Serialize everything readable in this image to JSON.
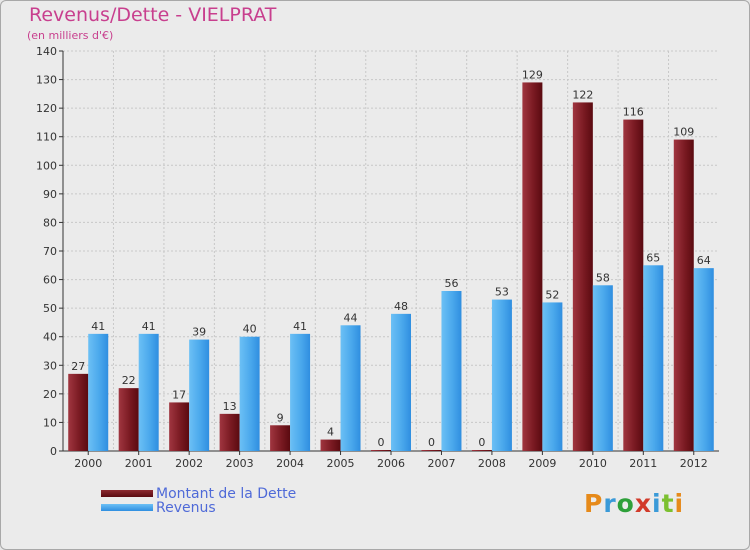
{
  "header": {
    "title": "Revenus/Dette - VIELPRAT",
    "subtitle": "(en milliers d'€)"
  },
  "chart_data": {
    "type": "bar",
    "title": "Revenus/Dette - VIELPRAT",
    "ylabel": "(en milliers d'€)",
    "xlabel": "",
    "categories": [
      "2000",
      "2001",
      "2002",
      "2003",
      "2004",
      "2005",
      "2006",
      "2007",
      "2008",
      "2009",
      "2010",
      "2011",
      "2012"
    ],
    "series": [
      {
        "name": "Montant de la Dette",
        "color": "#6b0d12",
        "values": [
          27,
          22,
          17,
          13,
          9,
          4,
          0,
          0,
          0,
          129,
          122,
          116,
          109
        ]
      },
      {
        "name": "Revenus",
        "color": "#3a9ae6",
        "values": [
          41,
          41,
          39,
          40,
          41,
          44,
          48,
          56,
          53,
          52,
          58,
          65,
          64
        ]
      }
    ],
    "ylim": [
      0,
      140
    ],
    "yticks": [
      0,
      10,
      20,
      30,
      40,
      50,
      60,
      70,
      80,
      90,
      100,
      110,
      120,
      130,
      140
    ],
    "grid": true,
    "legend_position": "bottom-left",
    "show_value_labels": true
  },
  "legend": {
    "items": [
      {
        "label": "Montant de la Dette",
        "color": "#6b0d12"
      },
      {
        "label": "Revenus",
        "color": "#3a9ae6"
      }
    ]
  },
  "logo": {
    "letters": [
      "P",
      "r",
      "o",
      "x",
      "i",
      "t",
      "i"
    ],
    "colors": [
      "#e68a1a",
      "#3a9ad8",
      "#2ea03a",
      "#d23a2a",
      "#3a9ad8",
      "#7cc030",
      "#e68a1a"
    ]
  }
}
